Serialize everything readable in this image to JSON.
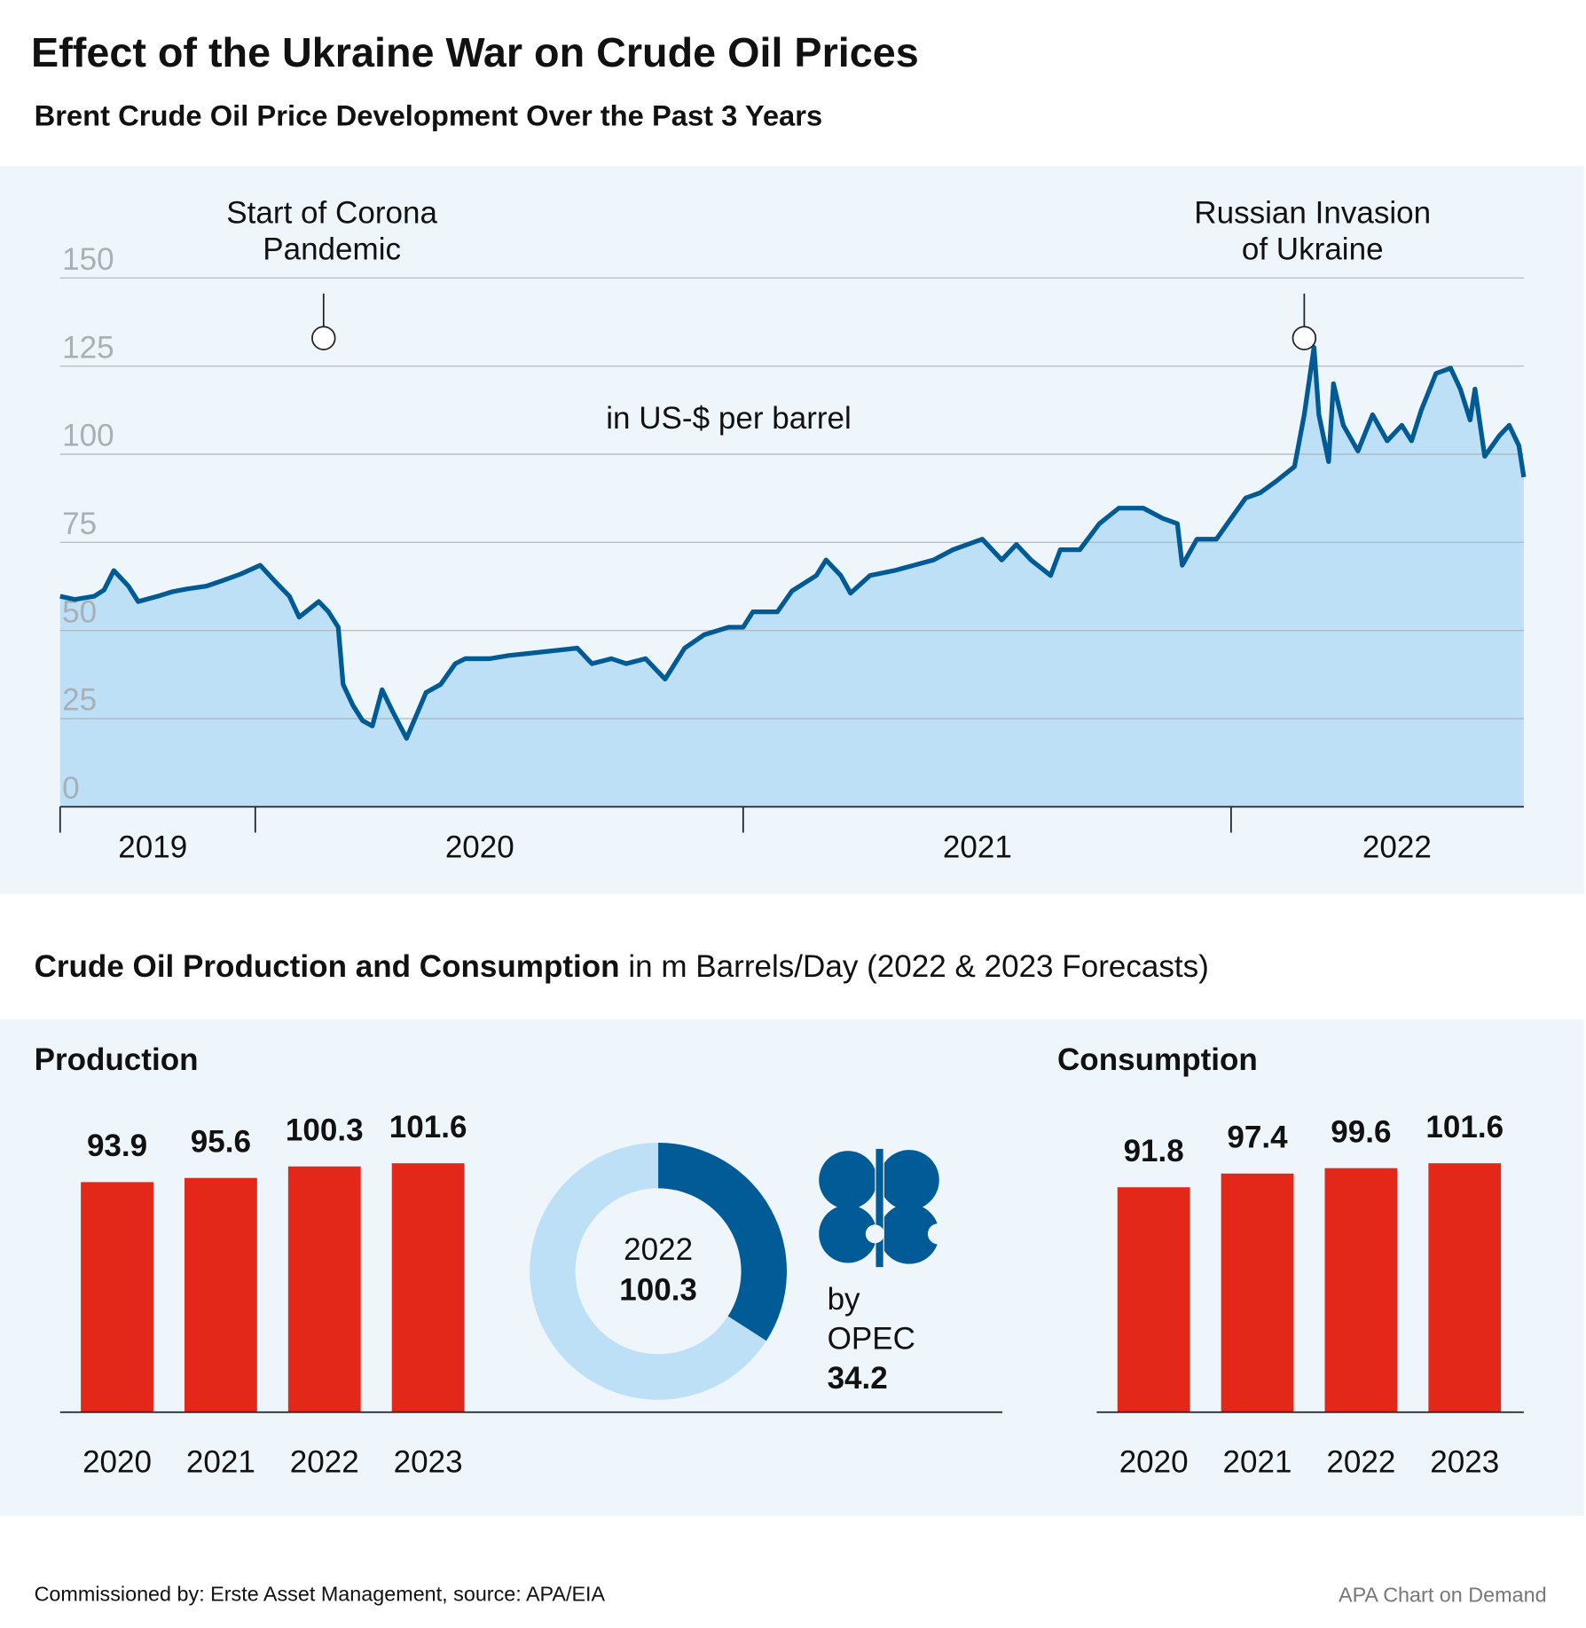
{
  "title": "Effect of the Ukraine War on Crude Oil Prices",
  "subtitle": "Brent Crude Oil Price Development Over the Past 3 Years",
  "section_title": "Crude Oil Production and Consumption",
  "section_subtitle": "in m Barrels/Day (2022 & 2023 Forecasts)",
  "footer_source": "Commissioned by: Erste Asset Management, source: APA/EIA",
  "footer_credit": "APA Chart on Demand",
  "chart_data": [
    {
      "type": "area",
      "unit_label": "in US-$ per barrel",
      "x": [
        2019.6,
        2019.63,
        2019.67,
        2019.69,
        2019.71,
        2019.74,
        2019.76,
        2019.8,
        2019.83,
        2019.86,
        2019.9,
        2019.93,
        2019.97,
        2020.01,
        2020.04,
        2020.07,
        2020.09,
        2020.13,
        2020.15,
        2020.17,
        2020.18,
        2020.2,
        2020.22,
        2020.24,
        2020.26,
        2020.28,
        2020.31,
        2020.33,
        2020.35,
        2020.38,
        2020.41,
        2020.43,
        2020.48,
        2020.52,
        2020.56,
        2020.6,
        2020.66,
        2020.69,
        2020.73,
        2020.76,
        2020.8,
        2020.84,
        2020.88,
        2020.92,
        2020.97,
        2021.0,
        2021.02,
        2021.07,
        2021.1,
        2021.15,
        2021.17,
        2021.2,
        2021.22,
        2021.26,
        2021.31,
        2021.35,
        2021.39,
        2021.43,
        2021.49,
        2021.53,
        2021.56,
        2021.59,
        2021.63,
        2021.65,
        2021.69,
        2021.73,
        2021.77,
        2021.82,
        2021.86,
        2021.89,
        2021.9,
        2021.93,
        2021.97,
        2022.0,
        2022.03,
        2022.06,
        2022.09,
        2022.13,
        2022.15,
        2022.17,
        2022.18,
        2022.2,
        2022.21,
        2022.23,
        2022.26,
        2022.29,
        2022.32,
        2022.35,
        2022.37,
        2022.39,
        2022.42,
        2022.45,
        2022.47,
        2022.49,
        2022.5,
        2022.52,
        2022.55,
        2022.57,
        2022.59,
        2022.6
      ],
      "series": [
        {
          "color": "#005a94",
          "fill": "#bde0f6",
          "values": [
            59.7,
            58.8,
            59.7,
            61.5,
            67,
            62.6,
            58.2,
            59.7,
            61,
            61.8,
            62.6,
            64,
            66,
            68.5,
            64,
            59.7,
            53.8,
            58.2,
            55.3,
            50.9,
            34.7,
            28.8,
            24.4,
            22.9,
            33.2,
            27.4,
            19.4,
            25.9,
            32.4,
            34.7,
            40.6,
            42,
            42,
            42.9,
            43.5,
            44.1,
            45,
            40.6,
            42,
            40.6,
            42,
            36.2,
            45,
            48.8,
            50.9,
            50.9,
            55.3,
            55.3,
            61.2,
            65.6,
            70,
            65.6,
            60.6,
            65.6,
            67,
            68.5,
            70,
            72.9,
            75.9,
            70,
            74.4,
            70,
            65.6,
            72.9,
            72.9,
            80.3,
            84.7,
            84.7,
            81.8,
            80.3,
            68.5,
            75.9,
            75.9,
            81.8,
            87.6,
            89.1,
            92.1,
            96.5,
            111.2,
            130.3,
            111.2,
            97.9,
            120,
            108.2,
            100.9,
            111.2,
            103.8,
            108.2,
            103.8,
            112.6,
            122.9,
            124.4,
            118.5,
            109.7,
            118.5,
            99.4,
            105.3,
            108.2,
            102.4,
            93.5
          ]
        }
      ],
      "xlim": [
        2019.6,
        2022.6
      ],
      "xticks": [
        2020,
        2021,
        2022
      ],
      "xlabels": [
        {
          "value": 2019.79,
          "label": "2019"
        },
        {
          "value": 2020.46,
          "label": "2020"
        },
        {
          "value": 2021.48,
          "label": "2021"
        },
        {
          "value": 2022.34,
          "label": "2022"
        }
      ],
      "ylim": [
        0,
        150
      ],
      "yticks": [
        0,
        25,
        50,
        75,
        100,
        125,
        150
      ],
      "grid": true,
      "annotations": [
        {
          "x": 2020.14,
          "text": [
            "Start of Corona",
            "Pandemic"
          ]
        },
        {
          "x": 2022.15,
          "text": [
            "Russian Invasion",
            "of Ukraine"
          ]
        }
      ]
    },
    {
      "type": "bar",
      "title": "Production",
      "categories": [
        "2020",
        "2021",
        "2022",
        "2023"
      ],
      "values": [
        93.9,
        95.6,
        100.3,
        101.6
      ],
      "color": "#e3281a",
      "ylim": [
        0,
        110
      ]
    },
    {
      "type": "donut",
      "year": "2022",
      "total": 100.3,
      "prefix": "by",
      "series": [
        {
          "name": "OPEC",
          "value": 34.2,
          "color": "#005b96"
        }
      ],
      "rest_color": "#bde0f6"
    },
    {
      "type": "bar",
      "title": "Consumption",
      "categories": [
        "2020",
        "2021",
        "2022",
        "2023"
      ],
      "values": [
        91.8,
        97.4,
        99.6,
        101.6
      ],
      "color": "#e3281a",
      "ylim": [
        0,
        110
      ]
    }
  ]
}
